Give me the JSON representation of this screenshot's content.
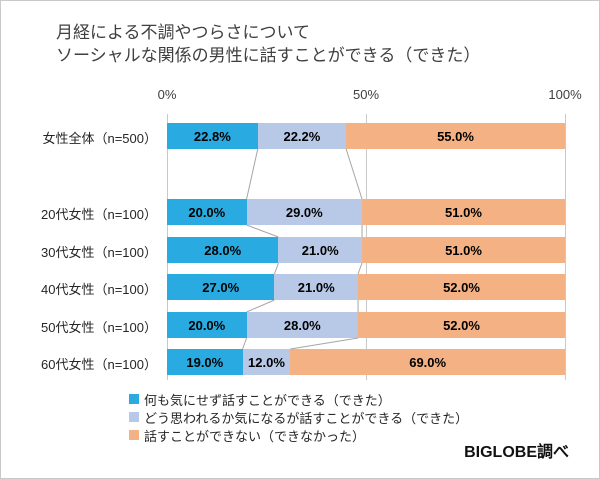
{
  "title": {
    "line1": "月経による不調やつらさについて",
    "line2": "ソーシャルな関係の男性に話すことができる（できた）"
  },
  "source_credit": "BIGLOBE調べ",
  "chart_data": {
    "type": "bar",
    "stacked": true,
    "orientation": "horizontal",
    "title": "月経による不調やつらさについて ソーシャルな関係の男性に話すことができる（できた）",
    "categories": [
      "女性全体（n=500）",
      "20代女性（n=100）",
      "30代女性（n=100）",
      "40代女性（n=100）",
      "50代女性（n=100）",
      "60代女性（n=100）"
    ],
    "series": [
      {
        "name": "何も気にせず話すことができる（できた）",
        "color": "#29ABE2",
        "values": [
          22.8,
          20.0,
          28.0,
          27.0,
          20.0,
          19.0
        ]
      },
      {
        "name": "どう思われるか気になるが話すことができる（できた）",
        "color": "#B8C9E8",
        "values": [
          22.2,
          29.0,
          21.0,
          21.0,
          28.0,
          12.0
        ]
      },
      {
        "name": "話すことができない（できなかった）",
        "color": "#F4B183",
        "values": [
          55.0,
          51.0,
          51.0,
          52.0,
          52.0,
          69.0
        ]
      }
    ],
    "value_label_format": "percent_one_decimal",
    "xlim": [
      0,
      100
    ],
    "xticks": [
      "0%",
      "50%",
      "100%"
    ],
    "grid": true,
    "legend_position": "bottom-left",
    "gridline_color": "#C9C9C9",
    "connector_color": "#A6A6A6"
  }
}
